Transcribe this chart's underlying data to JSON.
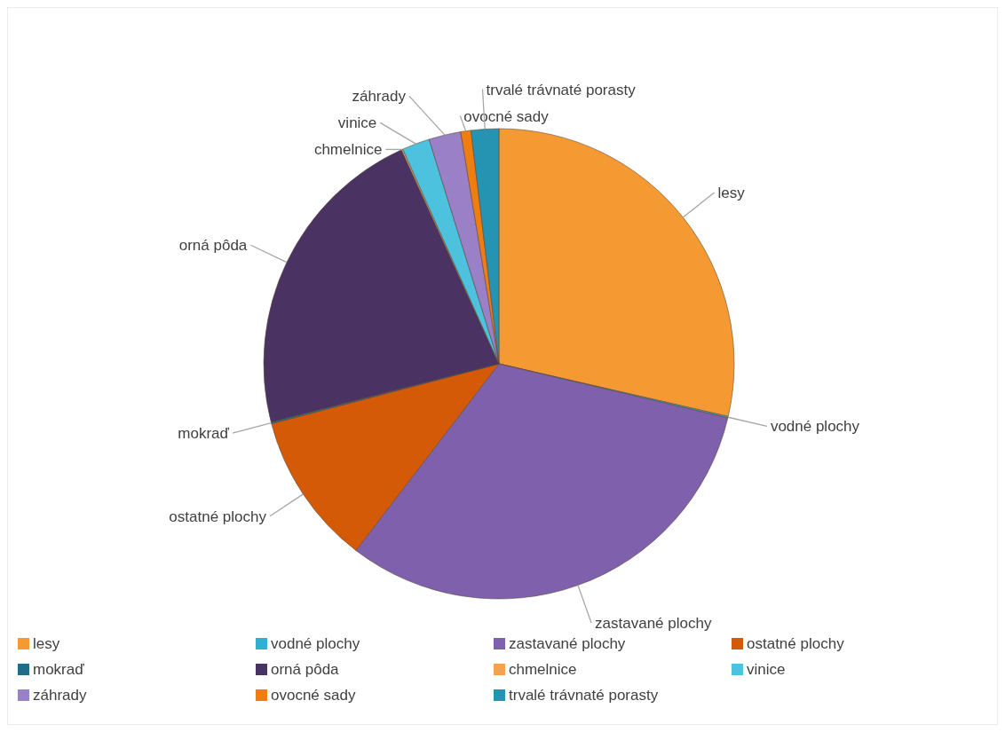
{
  "chart_data": {
    "type": "pie",
    "categories": [
      "lesy",
      "vodné plochy",
      "zastavané plochy",
      "ostatné plochy",
      "mokraď",
      "orná pôda",
      "chmelnice",
      "vinice",
      "záhrady",
      "ovocné sady",
      "trvalé trávnaté porasty"
    ],
    "values": [
      28.6,
      0.1,
      31.7,
      10.5,
      0.1,
      22.2,
      0.1,
      1.9,
      2.2,
      0.7,
      1.9
    ],
    "colors": [
      "#f59a32",
      "#2fb0d0",
      "#7f60ad",
      "#d45a08",
      "#1d6e86",
      "#4a3363",
      "#f3a250",
      "#4cc2df",
      "#9a80c6",
      "#f07d12",
      "#2593b2"
    ],
    "legend": "bottom"
  }
}
